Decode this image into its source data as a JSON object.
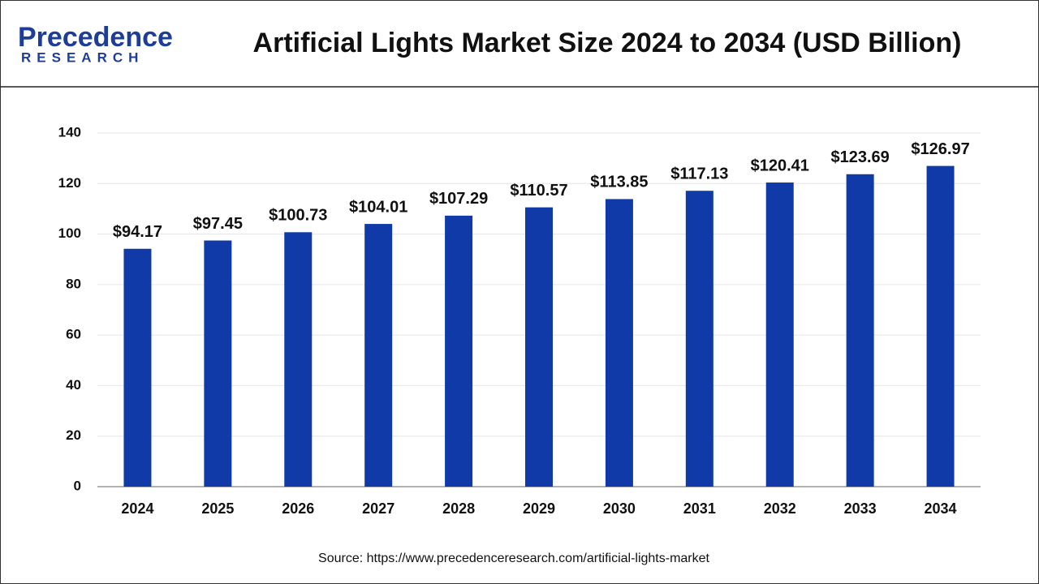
{
  "logo": {
    "name": "Precedence",
    "sub": "RESEARCH"
  },
  "chart_data": {
    "type": "bar",
    "title": "Artificial Lights Market Size 2024 to 2034 (USD Billion)",
    "source": "Source: https://www.precedenceresearch.com/artificial-lights-market",
    "categories": [
      "2024",
      "2025",
      "2026",
      "2027",
      "2028",
      "2029",
      "2030",
      "2031",
      "2032",
      "2033",
      "2034"
    ],
    "values": [
      94.17,
      97.45,
      100.73,
      104.01,
      107.29,
      110.57,
      113.85,
      117.13,
      120.41,
      123.69,
      126.97
    ],
    "value_labels": [
      "$94.17",
      "$97.45",
      "$100.73",
      "$104.01",
      "$107.29",
      "$110.57",
      "$113.85",
      "$117.13",
      "$120.41",
      "$123.69",
      "$126.97"
    ],
    "color": "#0f3aa8",
    "ylim": [
      0,
      140
    ],
    "yticks": [
      0,
      20,
      40,
      60,
      80,
      100,
      120,
      140
    ],
    "grid": true
  }
}
